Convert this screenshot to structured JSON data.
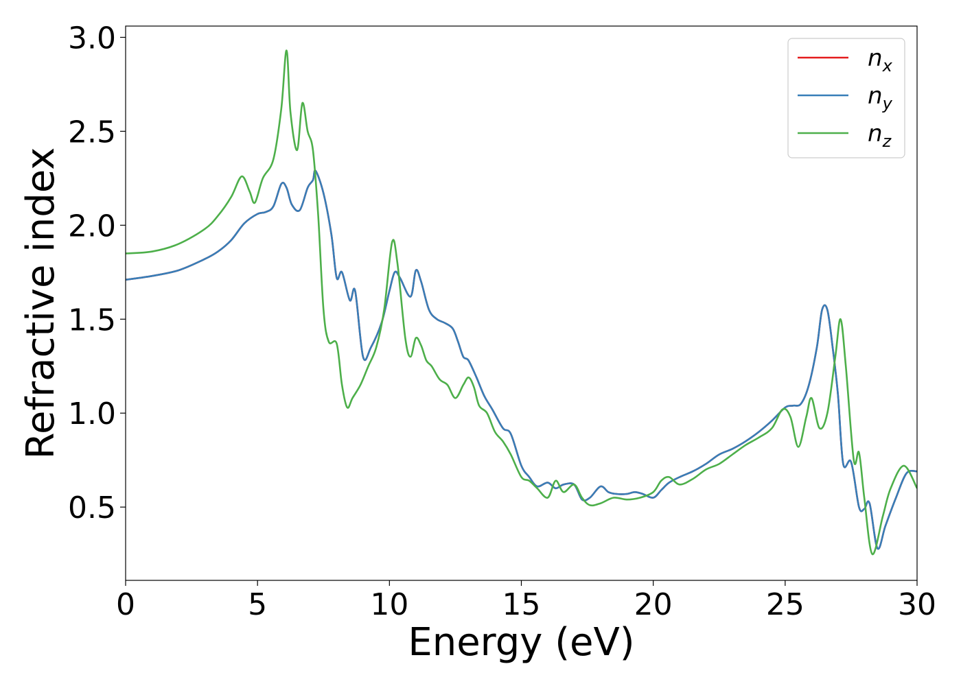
{
  "chart_data": {
    "type": "line",
    "xlabel": "Energy (eV)",
    "ylabel": "Refractive index",
    "xlim": [
      0,
      30
    ],
    "ylim": [
      0.11,
      3.06
    ],
    "xticks": [
      0,
      5,
      10,
      15,
      20,
      25,
      30
    ],
    "xtick_labels": [
      "0",
      "5",
      "10",
      "15",
      "20",
      "25",
      "30"
    ],
    "yticks": [
      0.5,
      1.0,
      1.5,
      2.0,
      2.5,
      3.0
    ],
    "ytick_labels": [
      "0.5",
      "1.0",
      "1.5",
      "2.0",
      "2.5",
      "3.0"
    ],
    "grid": false,
    "legend_position": "top-right",
    "series": [
      {
        "name": "n_x",
        "label_main": "n",
        "label_sub": "x",
        "color": "#e41a1c",
        "x": [
          0,
          1,
          2,
          3,
          3.5,
          4,
          4.5,
          5,
          5.3,
          5.6,
          5.9,
          6.1,
          6.3,
          6.6,
          6.9,
          7.1,
          7.2,
          7.5,
          7.8,
          8.0,
          8.2,
          8.5,
          8.7,
          9.0,
          9.3,
          9.7,
          10.0,
          10.2,
          10.4,
          10.8,
          11.0,
          11.2,
          11.5,
          11.8,
          12.1,
          12.4,
          12.6,
          12.8,
          13.0,
          13.3,
          13.6,
          13.9,
          14.3,
          14.6,
          15.0,
          15.3,
          15.6,
          16.0,
          16.3,
          16.6,
          17.0,
          17.3,
          17.6,
          18.0,
          18.3,
          18.6,
          19.0,
          19.3,
          19.6,
          20.0,
          20.3,
          20.6,
          21.0,
          21.5,
          22.0,
          22.5,
          23.0,
          23.5,
          24.0,
          24.5,
          25.0,
          25.3,
          25.6,
          25.9,
          26.2,
          26.4,
          26.6,
          26.8,
          27.0,
          27.2,
          27.5,
          27.8,
          28.0,
          28.2,
          28.5,
          28.8,
          29.2,
          29.6,
          30
        ],
        "y": [
          1.71,
          1.73,
          1.76,
          1.82,
          1.86,
          1.92,
          2.01,
          2.06,
          2.07,
          2.1,
          2.22,
          2.2,
          2.11,
          2.08,
          2.2,
          2.24,
          2.29,
          2.17,
          1.95,
          1.72,
          1.75,
          1.6,
          1.65,
          1.3,
          1.35,
          1.48,
          1.65,
          1.75,
          1.72,
          1.62,
          1.76,
          1.7,
          1.55,
          1.5,
          1.48,
          1.45,
          1.38,
          1.3,
          1.28,
          1.19,
          1.09,
          1.02,
          0.92,
          0.89,
          0.72,
          0.66,
          0.61,
          0.63,
          0.6,
          0.62,
          0.62,
          0.54,
          0.55,
          0.61,
          0.58,
          0.57,
          0.57,
          0.58,
          0.57,
          0.55,
          0.59,
          0.63,
          0.66,
          0.69,
          0.73,
          0.78,
          0.81,
          0.85,
          0.9,
          0.96,
          1.03,
          1.04,
          1.05,
          1.15,
          1.35,
          1.55,
          1.55,
          1.35,
          1.1,
          0.73,
          0.74,
          0.5,
          0.49,
          0.52,
          0.28,
          0.4,
          0.55,
          0.68,
          0.69
        ]
      },
      {
        "name": "n_y",
        "label_main": "n",
        "label_sub": "y",
        "color": "#377eb8",
        "x": [
          0,
          1,
          2,
          3,
          3.5,
          4,
          4.5,
          5,
          5.3,
          5.6,
          5.9,
          6.1,
          6.3,
          6.6,
          6.9,
          7.1,
          7.2,
          7.5,
          7.8,
          8.0,
          8.2,
          8.5,
          8.7,
          9.0,
          9.3,
          9.7,
          10.0,
          10.2,
          10.4,
          10.8,
          11.0,
          11.2,
          11.5,
          11.8,
          12.1,
          12.4,
          12.6,
          12.8,
          13.0,
          13.3,
          13.6,
          13.9,
          14.3,
          14.6,
          15.0,
          15.3,
          15.6,
          16.0,
          16.3,
          16.6,
          17.0,
          17.3,
          17.6,
          18.0,
          18.3,
          18.6,
          19.0,
          19.3,
          19.6,
          20.0,
          20.3,
          20.6,
          21.0,
          21.5,
          22.0,
          22.5,
          23.0,
          23.5,
          24.0,
          24.5,
          25.0,
          25.3,
          25.6,
          25.9,
          26.2,
          26.4,
          26.6,
          26.8,
          27.0,
          27.2,
          27.5,
          27.8,
          28.0,
          28.2,
          28.5,
          28.8,
          29.2,
          29.6,
          30
        ],
        "y": [
          1.71,
          1.73,
          1.76,
          1.82,
          1.86,
          1.92,
          2.01,
          2.06,
          2.07,
          2.1,
          2.22,
          2.2,
          2.11,
          2.08,
          2.2,
          2.24,
          2.29,
          2.17,
          1.95,
          1.72,
          1.75,
          1.6,
          1.65,
          1.3,
          1.35,
          1.48,
          1.65,
          1.75,
          1.72,
          1.62,
          1.76,
          1.7,
          1.55,
          1.5,
          1.48,
          1.45,
          1.38,
          1.3,
          1.28,
          1.19,
          1.09,
          1.02,
          0.92,
          0.89,
          0.72,
          0.66,
          0.61,
          0.63,
          0.6,
          0.62,
          0.62,
          0.54,
          0.55,
          0.61,
          0.58,
          0.57,
          0.57,
          0.58,
          0.57,
          0.55,
          0.59,
          0.63,
          0.66,
          0.69,
          0.73,
          0.78,
          0.81,
          0.85,
          0.9,
          0.96,
          1.03,
          1.04,
          1.05,
          1.15,
          1.35,
          1.55,
          1.55,
          1.35,
          1.1,
          0.73,
          0.74,
          0.5,
          0.49,
          0.52,
          0.28,
          0.4,
          0.55,
          0.68,
          0.69
        ]
      },
      {
        "name": "n_z",
        "label_main": "n",
        "label_sub": "z",
        "color": "#4daf4a",
        "x": [
          0,
          1,
          2,
          3,
          3.5,
          4,
          4.4,
          4.7,
          4.9,
          5.2,
          5.6,
          5.9,
          6.1,
          6.25,
          6.5,
          6.7,
          6.9,
          7.1,
          7.3,
          7.5,
          7.7,
          8.0,
          8.2,
          8.4,
          8.6,
          8.9,
          9.2,
          9.5,
          9.8,
          10.1,
          10.3,
          10.6,
          10.8,
          11.0,
          11.2,
          11.4,
          11.6,
          11.9,
          12.2,
          12.5,
          12.8,
          13.0,
          13.2,
          13.4,
          13.7,
          14.0,
          14.3,
          14.6,
          15.0,
          15.3,
          15.6,
          16.0,
          16.3,
          16.6,
          17.0,
          17.3,
          17.6,
          18.0,
          18.5,
          19.0,
          19.5,
          20.0,
          20.3,
          20.6,
          21.0,
          21.5,
          22.0,
          22.5,
          23.0,
          23.5,
          24.0,
          24.5,
          24.9,
          25.2,
          25.5,
          25.8,
          26.0,
          26.3,
          26.6,
          26.9,
          27.1,
          27.3,
          27.6,
          27.8,
          28.0,
          28.3,
          28.7,
          29.0,
          29.5,
          30
        ],
        "y": [
          1.85,
          1.86,
          1.9,
          1.98,
          2.05,
          2.15,
          2.26,
          2.18,
          2.12,
          2.25,
          2.35,
          2.62,
          2.93,
          2.6,
          2.4,
          2.65,
          2.5,
          2.4,
          2.05,
          1.55,
          1.38,
          1.37,
          1.15,
          1.03,
          1.08,
          1.15,
          1.25,
          1.35,
          1.55,
          1.91,
          1.8,
          1.4,
          1.3,
          1.4,
          1.36,
          1.28,
          1.25,
          1.18,
          1.15,
          1.08,
          1.15,
          1.19,
          1.14,
          1.04,
          1.0,
          0.9,
          0.85,
          0.78,
          0.66,
          0.64,
          0.6,
          0.55,
          0.64,
          0.58,
          0.62,
          0.55,
          0.51,
          0.52,
          0.55,
          0.54,
          0.55,
          0.58,
          0.64,
          0.66,
          0.62,
          0.65,
          0.7,
          0.73,
          0.78,
          0.83,
          0.87,
          0.92,
          1.02,
          0.98,
          0.82,
          0.98,
          1.08,
          0.92,
          1.0,
          1.3,
          1.5,
          1.25,
          0.75,
          0.79,
          0.55,
          0.25,
          0.45,
          0.6,
          0.72,
          0.6
        ]
      }
    ]
  }
}
